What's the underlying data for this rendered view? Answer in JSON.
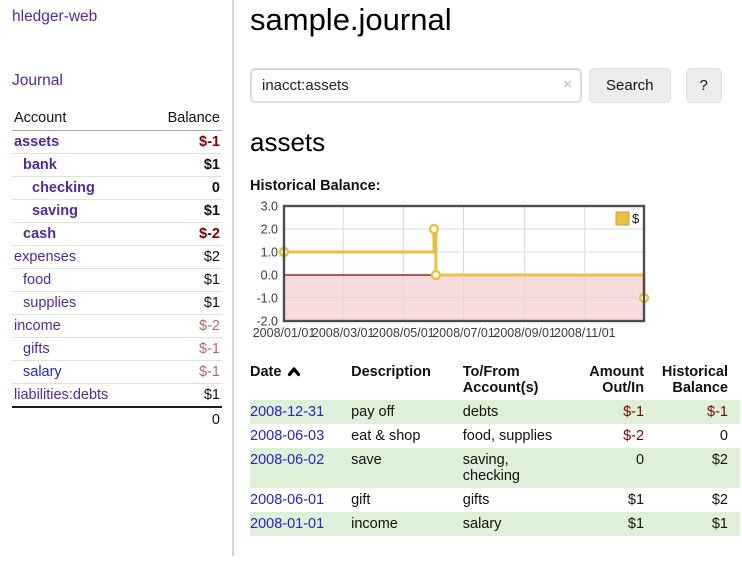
{
  "colors": {
    "link_purple": "#532a9d",
    "link_blue": "#2424c9",
    "negative_strong": "#7f0000",
    "negative_muted": "#b16a6a",
    "row_green": "#dff0d8",
    "chart_line_yellow": "#e9c143",
    "chart_negative_pink": "#fadbdb",
    "chart_zero_red": "#7f0000",
    "chart_grid": "#d9d9d9",
    "chart_border": "#4d4d4d"
  },
  "sidebar": {
    "app_title": "hledger-web",
    "nav": {
      "journal": "Journal"
    },
    "table": {
      "account_header": "Account",
      "balance_header": "Balance"
    },
    "accounts": [
      {
        "name": "assets",
        "balance": "$-1",
        "indent": 0,
        "bold": true,
        "negative": "strong"
      },
      {
        "name": "bank",
        "balance": "$1",
        "indent": 1,
        "bold": true
      },
      {
        "name": "checking",
        "balance": "0",
        "indent": 2,
        "bold": true
      },
      {
        "name": "saving",
        "balance": "$1",
        "indent": 2,
        "bold": true
      },
      {
        "name": "cash",
        "balance": "$-2",
        "indent": 1,
        "bold": true,
        "negative": "strong"
      },
      {
        "name": "expenses",
        "balance": "$2",
        "indent": 0
      },
      {
        "name": "food",
        "balance": "$1",
        "indent": 1
      },
      {
        "name": "supplies",
        "balance": "$1",
        "indent": 1
      },
      {
        "name": "income",
        "balance": "$-2",
        "indent": 0,
        "negative": "muted"
      },
      {
        "name": "gifts",
        "balance": "$-1",
        "indent": 1,
        "negative": "muted"
      },
      {
        "name": "salary",
        "balance": "$-1",
        "indent": 1,
        "negative": "muted",
        "blue": true
      },
      {
        "name": "liabilities:debts",
        "balance": "$1",
        "indent": 0
      }
    ],
    "total": "0"
  },
  "main": {
    "title": "sample.journal",
    "search": {
      "query": "inacct:assets",
      "clear_icon": "×",
      "button": "Search",
      "help_button": "?"
    },
    "account_heading": "assets",
    "chart_label": "Historical Balance:"
  },
  "chart_data": {
    "type": "line",
    "title": "Historical Balance:",
    "step": true,
    "x_domain": [
      "2008-01-01",
      "2008-12-31"
    ],
    "x_ticks": [
      "2008/01/01",
      "2008/03/01",
      "2008/05/01",
      "2008/07/01",
      "2008/09/01",
      "2008/11/01"
    ],
    "y_ticks": [
      3.0,
      2.0,
      1.0,
      0.0,
      -1.0,
      -2.0
    ],
    "ylim": [
      -2,
      3
    ],
    "grid": true,
    "legend_position": "top-right",
    "series": [
      {
        "name": "$",
        "points": [
          [
            "2008-01-01",
            1
          ],
          [
            "2008-06-01",
            2
          ],
          [
            "2008-06-03",
            0
          ],
          [
            "2008-12-31",
            -1
          ]
        ]
      }
    ]
  },
  "transactions": {
    "columns": {
      "date": "Date",
      "description": "Description",
      "accounts": "To/From Account(s)",
      "amount": "Amount Out/In",
      "balance": "Historical Balance"
    },
    "rows": [
      {
        "date": "2008-12-31",
        "description": "pay off",
        "accounts": "debts",
        "amount": "$-1",
        "amount_negative": true,
        "balance": "$-1",
        "balance_negative": true
      },
      {
        "date": "2008-06-03",
        "description": "eat & shop",
        "accounts": "food, supplies",
        "amount": "$-2",
        "amount_negative": true,
        "balance": "0"
      },
      {
        "date": "2008-06-02",
        "description": "save",
        "accounts": "saving, checking",
        "amount": "0",
        "balance": "$2"
      },
      {
        "date": "2008-06-01",
        "description": "gift",
        "accounts": "gifts",
        "amount": "$1",
        "balance": "$2"
      },
      {
        "date": "2008-01-01",
        "description": "income",
        "accounts": "salary",
        "amount": "$1",
        "balance": "$1"
      }
    ]
  }
}
